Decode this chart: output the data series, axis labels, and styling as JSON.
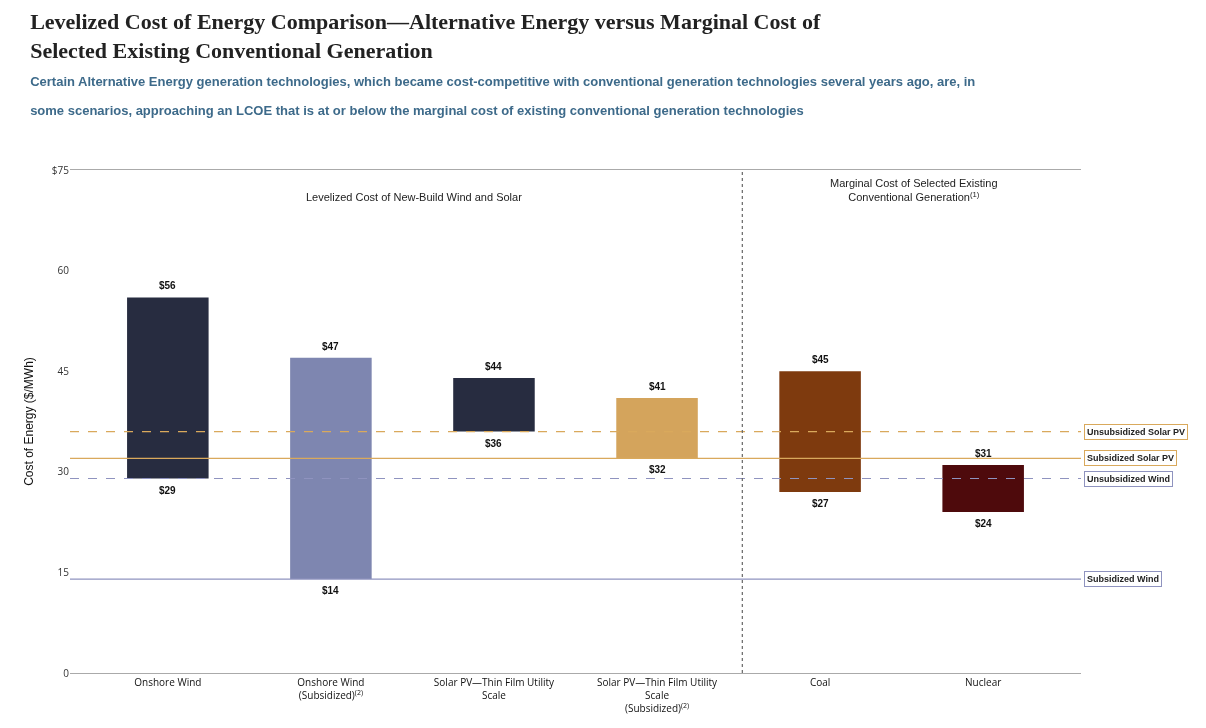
{
  "chart_data": {
    "type": "bar",
    "title": "Levelized Cost of Energy Comparison—Alternative Energy versus Marginal Cost of Selected Existing Conventional Generation",
    "subtitle": "Certain Alternative Energy generation technologies, which became cost-competitive with conventional generation technologies several years ago, are, in some scenarios, approaching an LCOE that is at or below the marginal cost of existing conventional generation technologies",
    "ylabel": "Cost of Energy ($/MWh)",
    "categories": [
      "Onshore Wind",
      "Onshore Wind (Subsidized)$^{(2)}$",
      "Solar PV—Thin Film Utility Scale",
      "Solar PV—Thin Film Utility Scale (Subsidized)$^{(2)}$",
      "Coal",
      "Nuclear"
    ],
    "base": [
      29,
      14,
      36,
      32,
      27,
      24
    ],
    "values": [
      27,
      33,
      8,
      9,
      18,
      7
    ],
    "colors": [
      "#272c40",
      "#7e86b0",
      "#272c40",
      "#d4a45c",
      "#7e3a0e",
      "#4e0a0c"
    ],
    "ylim": [
      0,
      75
    ],
    "yticks": [
      0,
      15,
      30,
      45,
      60,
      {
        "value": 75,
        "label": "$75"
      }
    ],
    "ref_lines": [
      {
        "axis": "y",
        "value": 36,
        "label": "Unsubsidized Solar PV",
        "color": "#d9a95c",
        "line_style": "dashed"
      },
      {
        "axis": "y",
        "value": 32,
        "label": "Subsidized Solar PV",
        "color": "#d9a95c",
        "line_style": "solid"
      },
      {
        "axis": "y",
        "value": 29,
        "label": "Unsubsidized Wind",
        "color": "#8f93bf",
        "line_style": "dashed"
      },
      {
        "axis": "y",
        "value": 14,
        "label": "Subsidized Wind",
        "color": "#8f93bf",
        "line_style": "solid"
      }
    ],
    "annotations": [
      "Levelized Cost of New-Build Wind and Solar",
      "Marginal Cost of Selected Existing Conventional Generation$^{(1)}$",
      {
        "text": "$56",
        "x": "Onshore Wind",
        "y": 56
      },
      {
        "text": "$29",
        "x": "Onshore Wind",
        "y": 29
      },
      {
        "text": "$47",
        "x": "Onshore Wind (Subsidized)$^{(2)}$",
        "y": 47
      },
      {
        "text": "$14",
        "x": "Onshore Wind (Subsidized)$^{(2)}$",
        "y": 14
      },
      {
        "text": "$44",
        "x": "Solar PV—Thin Film Utility Scale",
        "y": 44
      },
      {
        "text": "$36",
        "x": "Solar PV—Thin Film Utility Scale",
        "y": 36
      },
      {
        "text": "$41",
        "x": "Solar PV—Thin Film Utility Scale (Subsidized)$^{(2)}$",
        "y": 41
      },
      {
        "text": "$32",
        "x": "Solar PV—Thin Film Utility Scale (Subsidized)$^{(2)}$",
        "y": 32
      },
      {
        "text": "$45",
        "x": "Coal",
        "y": 45
      },
      {
        "text": "$27",
        "x": "Coal",
        "y": 27
      },
      {
        "text": "$31",
        "x": "Nuclear",
        "y": 31
      },
      {
        "text": "$24",
        "x": "Nuclear",
        "y": 24
      }
    ]
  }
}
